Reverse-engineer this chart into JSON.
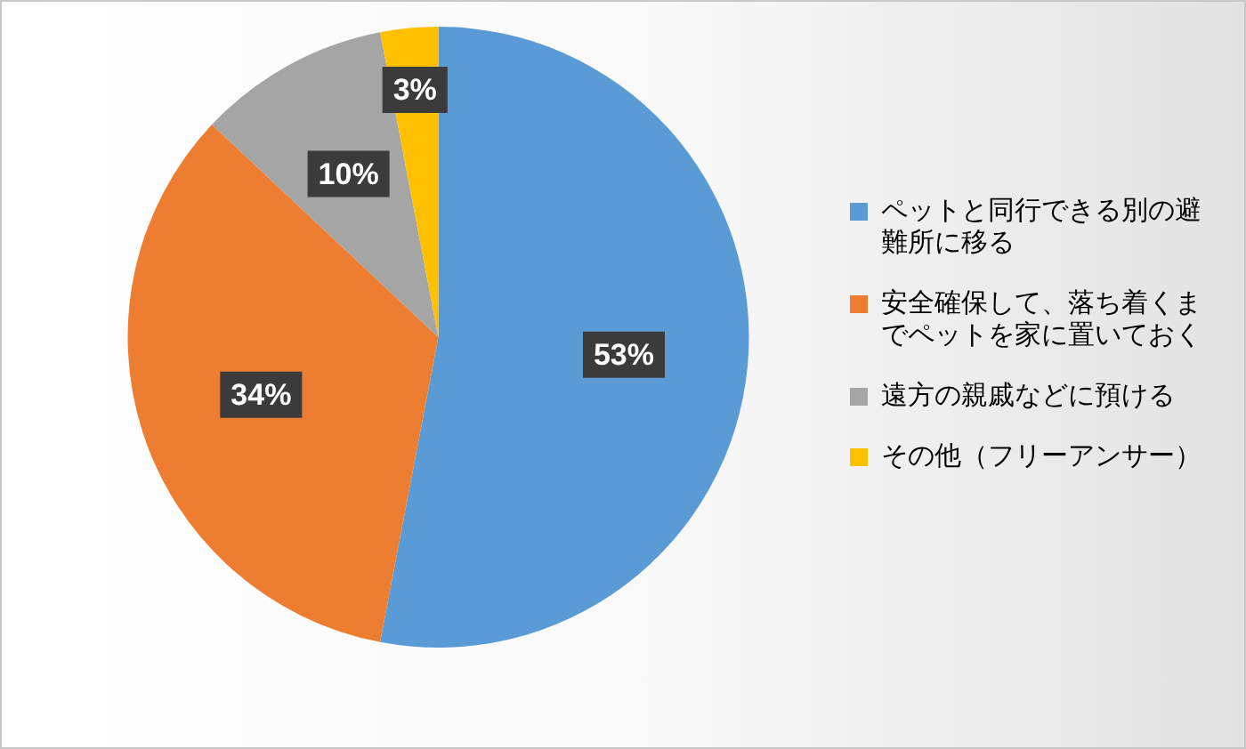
{
  "chart_data": {
    "type": "pie",
    "categories": [
      "ペットと同行できる別の避難所に移る",
      "安全確保して、落ち着くまでペットを家に置いておく",
      "遠方の親戚などに預ける",
      "その他（フリーアンサー）"
    ],
    "values": [
      53,
      34,
      10,
      3
    ],
    "colors": [
      "#5b9bd5",
      "#ed7d31",
      "#a5a5a5",
      "#ffc000"
    ],
    "value_labels": [
      "53%",
      "34%",
      "10%",
      "3%"
    ],
    "legend": "right"
  }
}
